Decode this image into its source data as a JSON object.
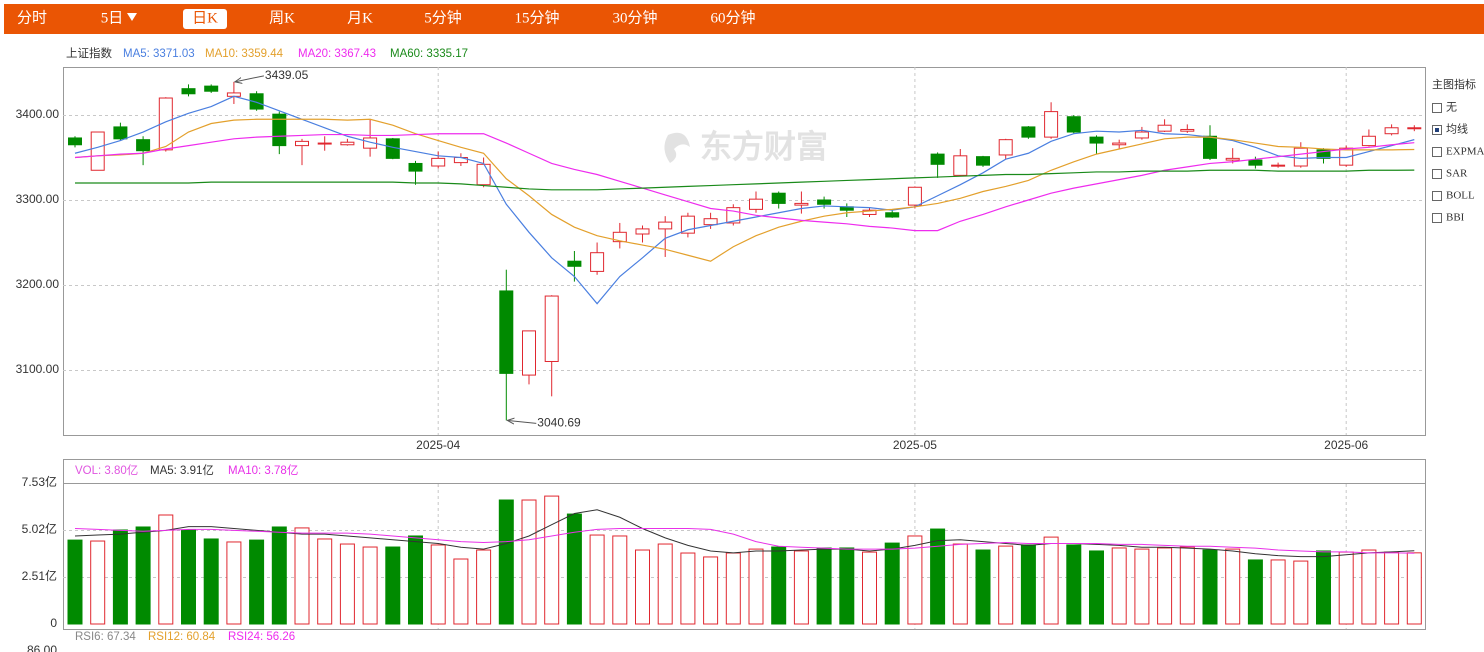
{
  "tabs": [
    "分时",
    "5日",
    "日K",
    "周K",
    "月K",
    "5分钟",
    "15分钟",
    "30分钟",
    "60分钟"
  ],
  "watermark": "东方财富",
  "indicator_panel": {
    "title": "主图指标",
    "options": [
      "无",
      "均线",
      "EXPMA",
      "SAR",
      "BOLL",
      "BBI"
    ]
  },
  "chart_data": [
    {
      "type": "candlestick",
      "legend": [
        "上证指数",
        "MA5: 3371.03",
        "MA10: 3359.44",
        "MA20: 3367.43",
        "MA60: 3335.17"
      ],
      "up_color": "#e0272f",
      "down_color": "#008a00",
      "categories": [
        null,
        null,
        null,
        null,
        null,
        null,
        null,
        null,
        null,
        null,
        null,
        null,
        null,
        null,
        null,
        null,
        "2025-04",
        null,
        null,
        null,
        null,
        null,
        null,
        null,
        null,
        null,
        null,
        null,
        null,
        null,
        null,
        null,
        null,
        null,
        null,
        null,
        null,
        "2025-05",
        null,
        null,
        null,
        null,
        null,
        null,
        null,
        null,
        null,
        null,
        null,
        null,
        null,
        null,
        null,
        null,
        null,
        null,
        "2025-06",
        null,
        null,
        null
      ],
      "ohlc": [
        [
          3373,
          3375,
          3362,
          3365
        ],
        [
          3335,
          3380,
          3335,
          3380
        ],
        [
          3386,
          3391,
          3370,
          3372
        ],
        [
          3371,
          3375,
          3341,
          3358
        ],
        [
          3359,
          3421,
          3357,
          3420
        ],
        [
          3431,
          3436,
          3422,
          3425
        ],
        [
          3434,
          3436,
          3426,
          3428
        ],
        [
          3422,
          3439.05,
          3413,
          3426
        ],
        [
          3425,
          3428,
          3405,
          3407
        ],
        [
          3401,
          3404,
          3354,
          3364
        ],
        [
          3364,
          3372,
          3341,
          3369
        ],
        [
          3366,
          3375,
          3358,
          3367
        ],
        [
          3365,
          3372,
          3364,
          3368
        ],
        [
          3361,
          3395,
          3351,
          3373
        ],
        [
          3372,
          3373,
          3348,
          3349
        ],
        [
          3343,
          3346,
          3318,
          3334
        ],
        [
          3340,
          3357,
          3337,
          3349
        ],
        [
          3344,
          3355,
          3340,
          3350
        ],
        [
          3318,
          3350,
          3315,
          3342
        ],
        [
          3193,
          3218,
          3040.69,
          3096
        ],
        [
          3094,
          3146,
          3083,
          3146
        ],
        [
          3110,
          3188,
          3069,
          3187
        ],
        [
          3228,
          3240,
          3204,
          3222
        ],
        [
          3216,
          3250,
          3212,
          3238
        ],
        [
          3251,
          3273,
          3243,
          3262
        ],
        [
          3260,
          3270,
          3250,
          3266
        ],
        [
          3266,
          3281,
          3233,
          3274
        ],
        [
          3261,
          3285,
          3256,
          3281
        ],
        [
          3271,
          3285,
          3266,
          3278
        ],
        [
          3273,
          3295,
          3270,
          3291
        ],
        [
          3289,
          3310,
          3285,
          3301
        ],
        [
          3308,
          3310,
          3290,
          3296
        ],
        [
          3294,
          3310,
          3284,
          3296
        ],
        [
          3300,
          3304,
          3290,
          3295
        ],
        [
          3292,
          3296,
          3280,
          3288
        ],
        [
          3283,
          3291,
          3280,
          3288
        ],
        [
          3285,
          3288,
          3279,
          3280
        ],
        [
          3294,
          3316,
          3290,
          3315
        ],
        [
          3354,
          3356,
          3326,
          3342
        ],
        [
          3329,
          3360,
          3328,
          3352
        ],
        [
          3351,
          3352,
          3339,
          3341
        ],
        [
          3353,
          3372,
          3348,
          3371
        ],
        [
          3386,
          3387,
          3372,
          3374
        ],
        [
          3374,
          3415,
          3372,
          3404
        ],
        [
          3398,
          3400,
          3378,
          3380
        ],
        [
          3374,
          3376,
          3354,
          3367
        ],
        [
          3365,
          3371,
          3360,
          3367
        ],
        [
          3373,
          3386,
          3371,
          3380
        ],
        [
          3381,
          3395,
          3380,
          3388
        ],
        [
          3381,
          3389,
          3379,
          3383
        ],
        [
          3375,
          3388,
          3347,
          3349
        ],
        [
          3347,
          3361,
          3343,
          3349
        ],
        [
          3347,
          3351,
          3337,
          3341
        ],
        [
          3340,
          3344,
          3338,
          3341
        ],
        [
          3340,
          3368,
          3338,
          3361
        ],
        [
          3359,
          3361,
          3343,
          3349
        ],
        [
          3341,
          3364,
          3339,
          3361
        ],
        [
          3364,
          3383,
          3363,
          3375
        ],
        [
          3378,
          3389,
          3376,
          3385
        ],
        [
          3384,
          3388,
          3381,
          3385
        ]
      ],
      "series": [
        {
          "color": "#4a7fe0",
          "values": [
            3355,
            3362,
            3370,
            3380,
            3392,
            3402,
            3410,
            3422,
            3415,
            3405,
            3395,
            3385,
            3375,
            3368,
            3362,
            3357,
            3352,
            3350,
            3343,
            3295,
            3262,
            3232,
            3210,
            3178,
            3210,
            3232,
            3255,
            3265,
            3270,
            3275,
            3280,
            3285,
            3290,
            3293,
            3292,
            3291,
            3288,
            3292,
            3305,
            3318,
            3332,
            3348,
            3355,
            3369,
            3378,
            3381,
            3380,
            3382,
            3378,
            3377,
            3374,
            3370,
            3362,
            3352,
            3349,
            3350,
            3350,
            3357,
            3364,
            3371.03
          ]
        },
        {
          "color": "#e3a02c",
          "values": [
            3350,
            3352,
            3353,
            3355,
            3363,
            3380,
            3390,
            3394,
            3395,
            3395,
            3395,
            3395,
            3394,
            3395,
            3388,
            3378,
            3370,
            3362,
            3355,
            3325,
            3305,
            3283,
            3268,
            3258,
            3252,
            3247,
            3242,
            3235,
            3228,
            3245,
            3258,
            3268,
            3275,
            3281,
            3285,
            3287,
            3289,
            3292,
            3296,
            3302,
            3310,
            3316,
            3323,
            3335,
            3345,
            3354,
            3360,
            3366,
            3372,
            3374,
            3374,
            3371,
            3367,
            3363,
            3362,
            3360,
            3359,
            3359,
            3359,
            3359.44
          ]
        },
        {
          "color": "#ee2cee",
          "values": [
            3350,
            3352,
            3354,
            3355,
            3360,
            3364,
            3368,
            3372,
            3374,
            3375,
            3376,
            3377,
            3377,
            3376,
            3376,
            3377,
            3378,
            3378,
            3378,
            3367,
            3355,
            3343,
            3336,
            3330,
            3322,
            3314,
            3306,
            3298,
            3290,
            3287,
            3282,
            3279,
            3276,
            3274,
            3272,
            3269,
            3267,
            3264,
            3264,
            3275,
            3283,
            3292,
            3300,
            3308,
            3314,
            3319,
            3324,
            3329,
            3335,
            3339,
            3343,
            3345,
            3348,
            3351,
            3354,
            3357,
            3360,
            3362,
            3365,
            3367.43
          ]
        },
        {
          "color": "#1a8a1a",
          "values": [
            3320,
            3320,
            3320,
            3320,
            3320,
            3320,
            3321,
            3321,
            3321,
            3321,
            3321,
            3321,
            3321,
            3321,
            3321,
            3320,
            3320,
            3319,
            3317,
            3315,
            3313,
            3312,
            3312,
            3312,
            3313,
            3314,
            3315,
            3316,
            3317,
            3318,
            3319,
            3320,
            3321,
            3322,
            3323,
            3324,
            3325,
            3326,
            3327,
            3328,
            3329,
            3330,
            3330,
            3331,
            3332,
            3333,
            3333,
            3334,
            3334,
            3334,
            3335,
            3335,
            3335,
            3334,
            3334,
            3334,
            3334,
            3335,
            3335,
            3335.17
          ]
        }
      ],
      "annotations": [
        {
          "value": 3439.05
        },
        {
          "value": 3040.69
        }
      ],
      "ylim": [
        3023.5,
        3456.5
      ],
      "yticks": [
        {
          "value": 3100,
          "label": "3100.00"
        },
        {
          "value": 3200,
          "label": "3200.00"
        },
        {
          "value": 3300,
          "label": "3300.00"
        },
        {
          "value": 3400,
          "label": "3400.00"
        }
      ],
      "grid": true
    },
    {
      "type": "bar",
      "legend": [
        "VOL: 3.80亿",
        "MA5: 3.91亿",
        "MA10: 3.78亿"
      ],
      "values": [
        4.48,
        4.43,
        5.02,
        5.18,
        5.82,
        5.02,
        4.54,
        4.38,
        4.48,
        5.18,
        5.13,
        4.54,
        4.27,
        4.11,
        4.11,
        4.7,
        4.22,
        3.47,
        3.95,
        6.62,
        6.62,
        6.83,
        5.87,
        4.75,
        4.7,
        3.95,
        4.27,
        3.79,
        3.58,
        3.79,
        4.0,
        4.11,
        3.9,
        4.06,
        4.06,
        3.84,
        4.32,
        4.7,
        5.07,
        4.27,
        3.95,
        4.16,
        4.22,
        4.64,
        4.22,
        3.9,
        4.06,
        4.0,
        4.06,
        4.11,
        3.95,
        4.0,
        3.42,
        3.42,
        3.36,
        3.9,
        3.84,
        3.95,
        3.84,
        3.8
      ],
      "series": [
        {
          "color": "#333333",
          "values": [
            4.7,
            4.75,
            4.8,
            4.9,
            5.0,
            5.2,
            5.2,
            5.1,
            5.0,
            4.9,
            4.8,
            4.8,
            4.7,
            4.6,
            4.5,
            4.4,
            4.3,
            4.1,
            4.0,
            4.3,
            4.7,
            5.3,
            5.9,
            6.1,
            5.7,
            5.1,
            4.6,
            4.2,
            3.9,
            3.8,
            3.9,
            3.9,
            3.95,
            4.0,
            4.0,
            3.9,
            4.0,
            4.2,
            4.45,
            4.5,
            4.4,
            4.3,
            4.2,
            4.3,
            4.3,
            4.25,
            4.2,
            4.1,
            4.1,
            4.05,
            4.0,
            3.9,
            3.75,
            3.65,
            3.6,
            3.6,
            3.7,
            3.8,
            3.85,
            3.91
          ]
        },
        {
          "color": "#e830e8",
          "values": [
            5.1,
            5.05,
            5.0,
            4.95,
            5.0,
            5.05,
            5.05,
            5.0,
            4.95,
            4.9,
            4.85,
            4.85,
            4.85,
            4.8,
            4.7,
            4.6,
            4.5,
            4.4,
            4.35,
            4.4,
            4.5,
            4.7,
            4.9,
            5.05,
            5.1,
            5.1,
            5.1,
            5.1,
            5.05,
            4.8,
            4.4,
            4.15,
            4.1,
            4.05,
            4.0,
            4.0,
            4.0,
            4.05,
            4.15,
            4.25,
            4.3,
            4.35,
            4.3,
            4.3,
            4.3,
            4.3,
            4.25,
            4.25,
            4.2,
            4.15,
            4.15,
            4.1,
            4.05,
            3.95,
            3.9,
            3.85,
            3.85,
            3.8,
            3.8,
            3.78
          ]
        }
      ],
      "ylim": [
        0,
        8.81
      ],
      "yticks": [
        0,
        {
          "value": 2.51,
          "label": "2.51亿"
        },
        {
          "value": 5.02,
          "label": "5.02亿"
        },
        {
          "value": 7.53,
          "label": "7.53亿"
        }
      ],
      "grid": true
    },
    {
      "type": "rsi",
      "legend": [
        "RSI6: 67.34",
        "RSI12: 60.84",
        "RSI24: 56.26"
      ],
      "yticks": [
        {
          "value": 86,
          "label": "86.00"
        }
      ]
    }
  ]
}
